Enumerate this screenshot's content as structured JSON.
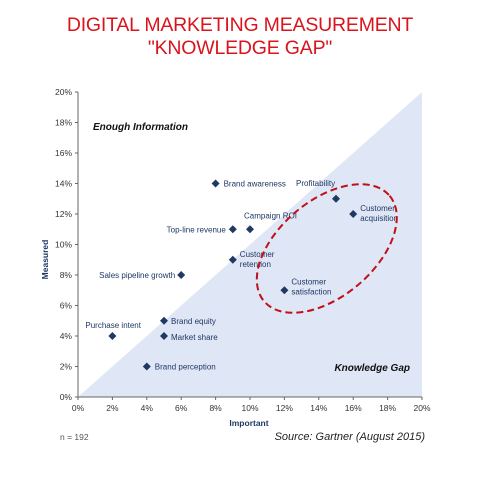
{
  "title": "DIGITAL MARKETING MEASUREMENT \"KNOWLEDGE GAP\"",
  "note": "n = 192",
  "source": "Source: Gartner (August 2015)",
  "colors": {
    "title": "#d9141c",
    "point": "#1f3864",
    "triangle": "#dfe6f5",
    "ellipse": "#c0101a"
  },
  "chart_data": {
    "type": "scatter",
    "xlabel": "Important",
    "ylabel": "Measured",
    "xlim": [
      0,
      20
    ],
    "ylim": [
      0,
      20
    ],
    "xticks": [
      "0%",
      "2%",
      "4%",
      "6%",
      "8%",
      "10%",
      "12%",
      "14%",
      "16%",
      "18%",
      "20%"
    ],
    "yticks": [
      "0%",
      "2%",
      "4%",
      "6%",
      "8%",
      "10%",
      "12%",
      "14%",
      "16%",
      "18%",
      "20%"
    ],
    "grid": false,
    "regions": [
      "Enough Information",
      "Knowledge Gap"
    ],
    "points": [
      {
        "label": "Brand awareness",
        "x": 8,
        "y": 14
      },
      {
        "label": "Profitability",
        "x": 15,
        "y": 13
      },
      {
        "label": "Customer acquisition",
        "x": 16,
        "y": 12
      },
      {
        "label": "Campaign ROI",
        "x": 10,
        "y": 11
      },
      {
        "label": "Top-line revenue",
        "x": 9,
        "y": 11
      },
      {
        "label": "Customer retention",
        "x": 9,
        "y": 9
      },
      {
        "label": "Sales pipeline growth",
        "x": 6,
        "y": 8
      },
      {
        "label": "Customer satisfaction",
        "x": 12,
        "y": 7
      },
      {
        "label": "Brand equity",
        "x": 5,
        "y": 5
      },
      {
        "label": "Purchase intent",
        "x": 2,
        "y": 4
      },
      {
        "label": "Market share",
        "x": 5,
        "y": 4
      },
      {
        "label": "Brand perception",
        "x": 4,
        "y": 2
      }
    ],
    "highlighted": [
      "Profitability",
      "Customer acquisition",
      "Customer satisfaction"
    ]
  }
}
